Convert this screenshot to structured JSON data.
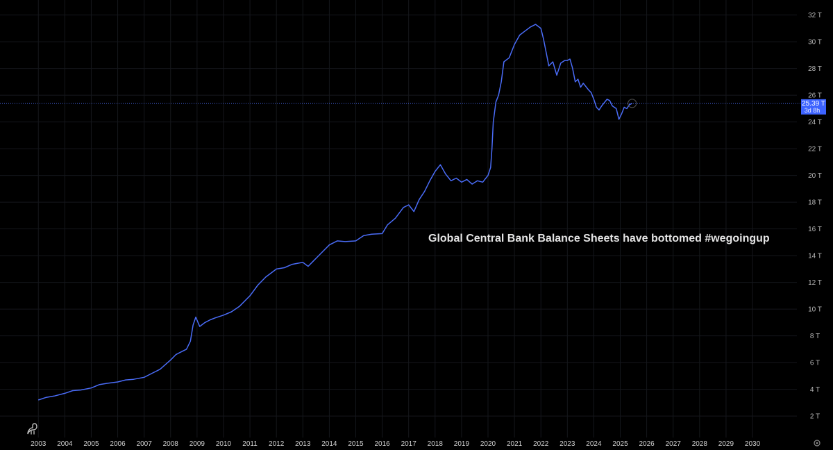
{
  "chart_data": {
    "type": "line",
    "title": "",
    "annotation": "Global Central Bank Balance Sheets have bottomed #wegoingup",
    "xlabel": "",
    "ylabel": "",
    "xlim": [
      2002.6,
      2031.6
    ],
    "ylim": [
      0.5,
      32.5
    ],
    "grid": true,
    "y_ticks": [
      2,
      4,
      6,
      8,
      10,
      12,
      14,
      16,
      18,
      20,
      22,
      24,
      26,
      28,
      30,
      32
    ],
    "y_tick_labels": [
      "2 T",
      "4 T",
      "6 T",
      "8 T",
      "10 T",
      "12 T",
      "14 T",
      "16 T",
      "18 T",
      "20 T",
      "22 T",
      "24 T",
      "26 T",
      "28 T",
      "30 T",
      "32 T"
    ],
    "x_ticks": [
      2003,
      2004,
      2005,
      2006,
      2007,
      2008,
      2009,
      2010,
      2011,
      2012,
      2013,
      2014,
      2015,
      2016,
      2017,
      2018,
      2019,
      2020,
      2021,
      2022,
      2023,
      2024,
      2025,
      2026,
      2027,
      2028,
      2029,
      2030
    ],
    "x_tick_labels": [
      "2003",
      "2004",
      "2005",
      "2006",
      "2007",
      "2008",
      "2009",
      "2010",
      "2011",
      "2012",
      "2013",
      "2014",
      "2015",
      "2016",
      "2017",
      "2018",
      "2019",
      "2020",
      "2021",
      "2022",
      "2023",
      "2024",
      "2025",
      "2026",
      "2027",
      "2028",
      "2029",
      "2030"
    ],
    "last_value": 25.39,
    "last_value_label": "25.39 T",
    "countdown_label": "3d 8h",
    "series": [
      {
        "color": "#4a6cf7",
        "x": [
          2003.0,
          2003.3,
          2003.6,
          2004.0,
          2004.3,
          2004.6,
          2005.0,
          2005.3,
          2005.6,
          2006.0,
          2006.3,
          2006.6,
          2007.0,
          2007.3,
          2007.6,
          2008.0,
          2008.2,
          2008.4,
          2008.6,
          2008.75,
          2008.85,
          2008.95,
          2009.1,
          2009.3,
          2009.5,
          2009.7,
          2010.0,
          2010.3,
          2010.6,
          2011.0,
          2011.3,
          2011.6,
          2012.0,
          2012.3,
          2012.6,
          2013.0,
          2013.2,
          2013.4,
          2013.6,
          2014.0,
          2014.3,
          2014.6,
          2015.0,
          2015.3,
          2015.6,
          2016.0,
          2016.2,
          2016.5,
          2016.8,
          2017.0,
          2017.2,
          2017.4,
          2017.6,
          2017.8,
          2018.0,
          2018.1,
          2018.2,
          2018.4,
          2018.6,
          2018.8,
          2019.0,
          2019.2,
          2019.4,
          2019.6,
          2019.8,
          2020.0,
          2020.1,
          2020.15,
          2020.2,
          2020.3,
          2020.4,
          2020.5,
          2020.6,
          2020.8,
          2021.0,
          2021.2,
          2021.4,
          2021.6,
          2021.8,
          2022.0,
          2022.1,
          2022.2,
          2022.3,
          2022.45,
          2022.6,
          2022.75,
          2022.9,
          2023.0,
          2023.1,
          2023.2,
          2023.3,
          2023.4,
          2023.5,
          2023.6,
          2023.8,
          2023.9,
          2024.0,
          2024.1,
          2024.2,
          2024.3,
          2024.5,
          2024.6,
          2024.7,
          2024.85,
          2024.95,
          2025.05,
          2025.15,
          2025.25,
          2025.35,
          2025.45
        ],
        "y": [
          3.2,
          3.4,
          3.5,
          3.7,
          3.9,
          3.95,
          4.1,
          4.35,
          4.45,
          4.55,
          4.7,
          4.75,
          4.9,
          5.2,
          5.5,
          6.2,
          6.6,
          6.8,
          7.0,
          7.6,
          8.8,
          9.4,
          8.7,
          9.0,
          9.2,
          9.35,
          9.55,
          9.8,
          10.2,
          11.0,
          11.8,
          12.4,
          13.0,
          13.1,
          13.35,
          13.5,
          13.2,
          13.6,
          14.0,
          14.8,
          15.1,
          15.05,
          15.1,
          15.5,
          15.6,
          15.65,
          16.3,
          16.8,
          17.6,
          17.8,
          17.3,
          18.2,
          18.8,
          19.6,
          20.3,
          20.55,
          20.8,
          20.1,
          19.6,
          19.8,
          19.5,
          19.7,
          19.35,
          19.6,
          19.5,
          20.0,
          20.6,
          22.0,
          24.0,
          25.5,
          26.0,
          27.0,
          28.5,
          28.8,
          29.8,
          30.5,
          30.8,
          31.1,
          31.3,
          31.0,
          30.2,
          29.2,
          28.2,
          28.5,
          27.5,
          28.4,
          28.6,
          28.6,
          28.7,
          28.0,
          27.0,
          27.2,
          26.6,
          26.9,
          26.4,
          26.2,
          25.7,
          25.1,
          24.9,
          25.2,
          25.7,
          25.6,
          25.2,
          25.0,
          24.2,
          24.6,
          25.1,
          25.0,
          25.3,
          25.39
        ]
      }
    ]
  },
  "colors": {
    "background": "#000000",
    "line": "#4a6cf7",
    "badge": "#3d63ff",
    "grid": "#15171c"
  },
  "icons": {
    "watermark": "dinosaur-logo-icon",
    "settings": "gear-icon"
  }
}
